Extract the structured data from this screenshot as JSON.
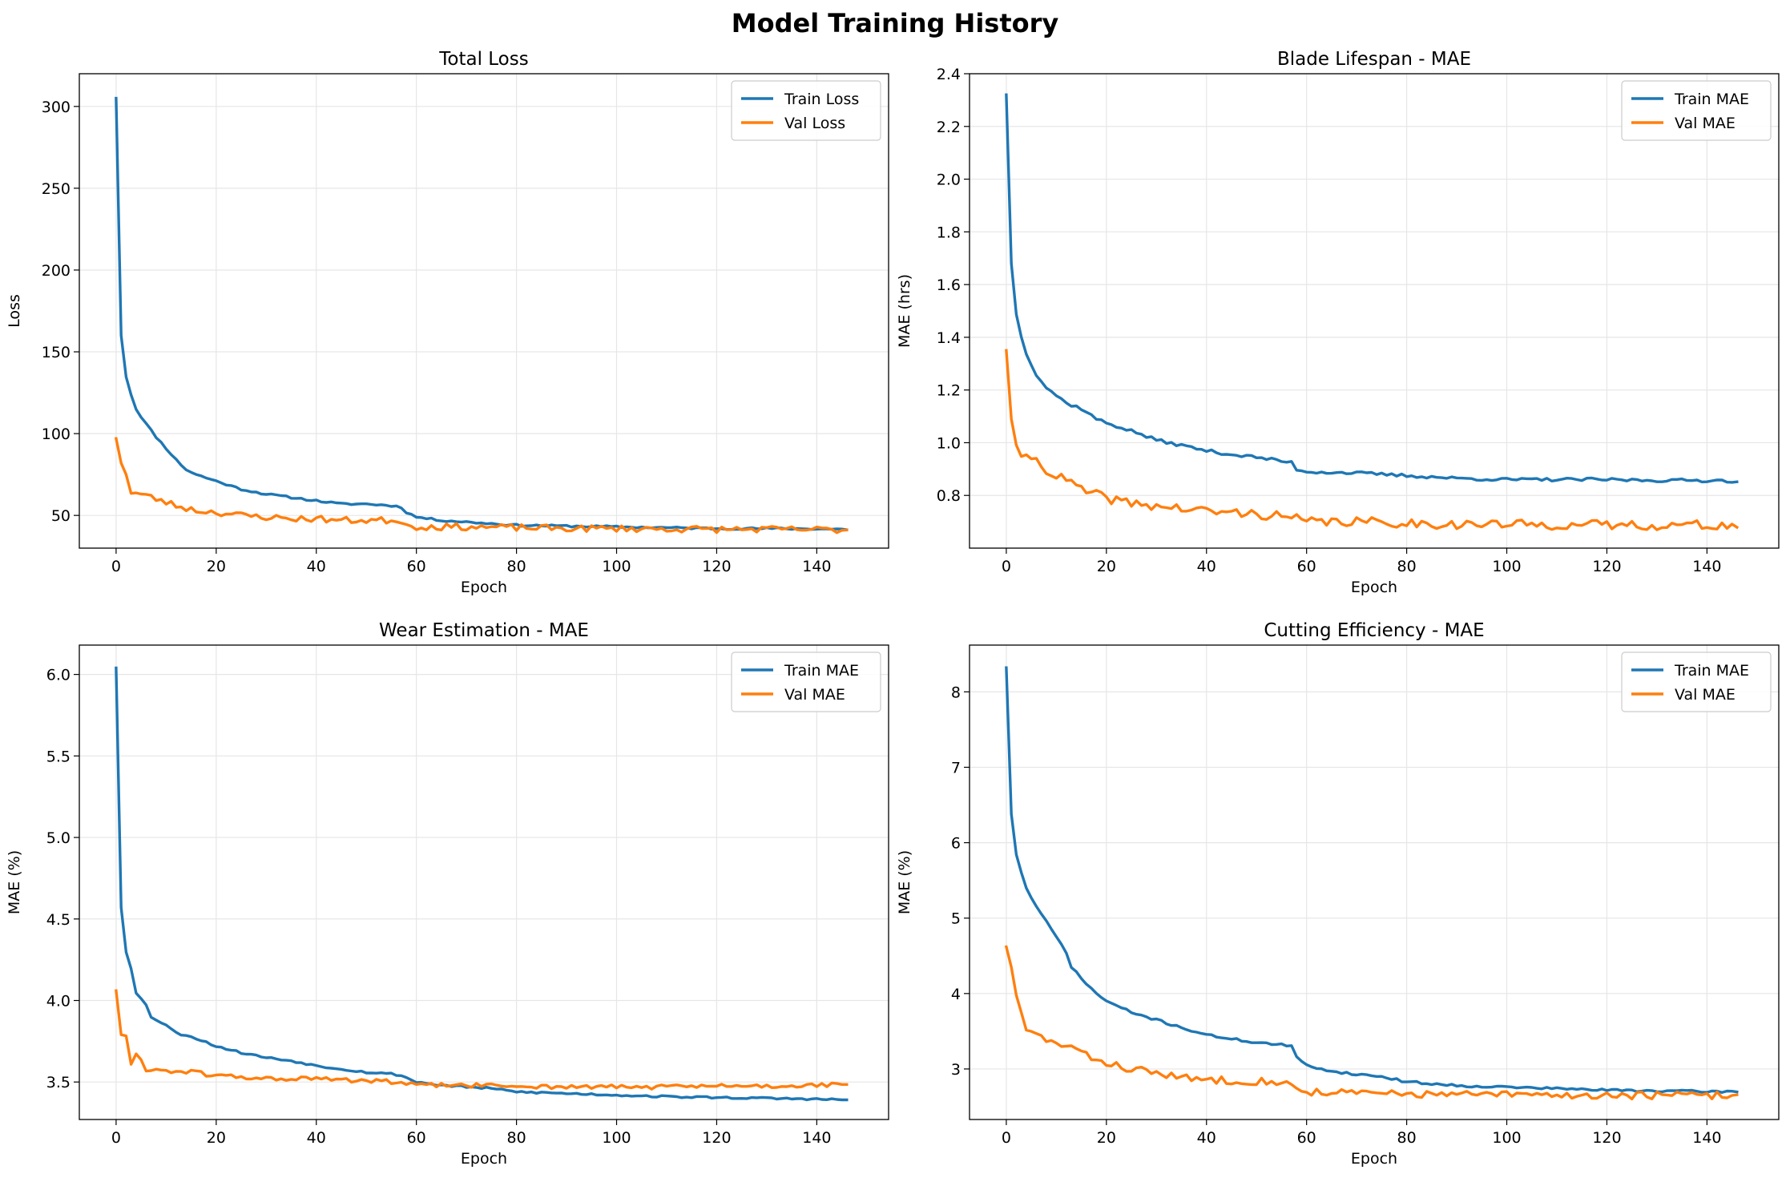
{
  "figure": {
    "title": "Model Training History"
  },
  "colors": {
    "train": "#1f77b4",
    "val": "#ff7f0e",
    "grid": "#e6e6e6"
  },
  "chart_data": [
    {
      "type": "line",
      "title": "Total Loss",
      "xlabel": "Epoch",
      "ylabel": "Loss",
      "xlim": [
        -7.35,
        154.35
      ],
      "ylim": [
        30,
        320
      ],
      "xticks": [
        0,
        20,
        40,
        60,
        80,
        100,
        120,
        140
      ],
      "yticks": [
        50,
        100,
        150,
        200,
        250,
        300
      ],
      "ytick_decimals": 0,
      "grid": true,
      "legend": "top-right",
      "series": [
        {
          "name": "Train Loss",
          "keypoints": [
            [
              0,
              305
            ],
            [
              1,
              160
            ],
            [
              2,
              135
            ],
            [
              3,
              124
            ],
            [
              4,
              115
            ],
            [
              6,
              106
            ],
            [
              8,
              98
            ],
            [
              10,
              91
            ],
            [
              12,
              84
            ],
            [
              14,
              78
            ],
            [
              16,
              75
            ],
            [
              20,
              71
            ],
            [
              25,
              66
            ],
            [
              30,
              63
            ],
            [
              35,
              61
            ],
            [
              40,
              59
            ],
            [
              45,
              57
            ],
            [
              50,
              57
            ],
            [
              55,
              56
            ],
            [
              57,
              55
            ],
            [
              58,
              52
            ],
            [
              60,
              49
            ],
            [
              65,
              47
            ],
            [
              70,
              46
            ],
            [
              75,
              45
            ],
            [
              80,
              44
            ],
            [
              90,
              43.5
            ],
            [
              100,
              43
            ],
            [
              110,
              42.5
            ],
            [
              120,
              42
            ],
            [
              130,
              42
            ],
            [
              140,
              41.8
            ],
            [
              146,
              41.5
            ]
          ],
          "noise": 0.6,
          "seed": 11
        },
        {
          "name": "Val Loss",
          "keypoints": [
            [
              0,
              97
            ],
            [
              1,
              82
            ],
            [
              2,
              76
            ],
            [
              3,
              64
            ],
            [
              5,
              63
            ],
            [
              8,
              60
            ],
            [
              10,
              58
            ],
            [
              12,
              56
            ],
            [
              16,
              53
            ],
            [
              20,
              52
            ],
            [
              25,
              50
            ],
            [
              30,
              49
            ],
            [
              35,
              48
            ],
            [
              40,
              48
            ],
            [
              45,
              47
            ],
            [
              50,
              47
            ],
            [
              55,
              47
            ],
            [
              57,
              47
            ],
            [
              58,
              44
            ],
            [
              60,
              43
            ],
            [
              70,
              43
            ],
            [
              80,
              42.5
            ],
            [
              90,
              42
            ],
            [
              100,
              42
            ],
            [
              110,
              41.7
            ],
            [
              120,
              41.5
            ],
            [
              130,
              41.5
            ],
            [
              140,
              41.3
            ],
            [
              146,
              41.2
            ]
          ],
          "noise": 2.0,
          "seed": 23
        }
      ]
    },
    {
      "type": "line",
      "title": "Blade Lifespan - MAE",
      "xlabel": "Epoch",
      "ylabel": "MAE (hrs)",
      "xlim": [
        -7.35,
        154.35
      ],
      "ylim": [
        0.6,
        2.4
      ],
      "xticks": [
        0,
        20,
        40,
        60,
        80,
        100,
        120,
        140
      ],
      "yticks": [
        0.8,
        1.0,
        1.2,
        1.4,
        1.6,
        1.8,
        2.0,
        2.2,
        2.4
      ],
      "ytick_decimals": 1,
      "grid": true,
      "legend": "top-right",
      "series": [
        {
          "name": "Train MAE",
          "keypoints": [
            [
              0,
              2.32
            ],
            [
              1,
              1.68
            ],
            [
              2,
              1.49
            ],
            [
              3,
              1.4
            ],
            [
              4,
              1.34
            ],
            [
              6,
              1.26
            ],
            [
              8,
              1.21
            ],
            [
              10,
              1.18
            ],
            [
              12,
              1.15
            ],
            [
              15,
              1.13
            ],
            [
              18,
              1.09
            ],
            [
              20,
              1.075
            ],
            [
              25,
              1.045
            ],
            [
              30,
              1.01
            ],
            [
              35,
              0.99
            ],
            [
              40,
              0.97
            ],
            [
              45,
              0.955
            ],
            [
              50,
              0.945
            ],
            [
              55,
              0.93
            ],
            [
              57,
              0.925
            ],
            [
              58,
              0.9
            ],
            [
              60,
              0.89
            ],
            [
              70,
              0.885
            ],
            [
              80,
              0.875
            ],
            [
              90,
              0.865
            ],
            [
              100,
              0.86
            ],
            [
              110,
              0.86
            ],
            [
              120,
              0.86
            ],
            [
              130,
              0.857
            ],
            [
              140,
              0.857
            ],
            [
              146,
              0.855
            ]
          ],
          "noise": 0.006,
          "seed": 37
        },
        {
          "name": "Val MAE",
          "keypoints": [
            [
              0,
              1.35
            ],
            [
              1,
              1.09
            ],
            [
              2,
              1.0
            ],
            [
              3,
              0.93
            ],
            [
              5,
              0.95
            ],
            [
              8,
              0.9
            ],
            [
              10,
              0.87
            ],
            [
              12,
              0.86
            ],
            [
              15,
              0.82
            ],
            [
              20,
              0.79
            ],
            [
              25,
              0.77
            ],
            [
              30,
              0.76
            ],
            [
              35,
              0.75
            ],
            [
              40,
              0.74
            ],
            [
              45,
              0.735
            ],
            [
              50,
              0.73
            ],
            [
              55,
              0.72
            ],
            [
              57,
              0.715
            ],
            [
              60,
              0.7
            ],
            [
              70,
              0.7
            ],
            [
              80,
              0.695
            ],
            [
              90,
              0.69
            ],
            [
              100,
              0.69
            ],
            [
              110,
              0.688
            ],
            [
              120,
              0.688
            ],
            [
              130,
              0.687
            ],
            [
              140,
              0.687
            ],
            [
              146,
              0.686
            ]
          ],
          "noise": 0.018,
          "seed": 41
        }
      ]
    },
    {
      "type": "line",
      "title": "Wear Estimation - MAE",
      "xlabel": "Epoch",
      "ylabel": "MAE (%)",
      "xlim": [
        -7.35,
        154.35
      ],
      "ylim": [
        3.27,
        6.18
      ],
      "xticks": [
        0,
        20,
        40,
        60,
        80,
        100,
        120,
        140
      ],
      "yticks": [
        3.5,
        4.0,
        4.5,
        5.0,
        5.5,
        6.0
      ],
      "ytick_decimals": 1,
      "grid": true,
      "legend": "top-right",
      "series": [
        {
          "name": "Train MAE",
          "keypoints": [
            [
              0,
              6.04
            ],
            [
              1,
              4.57
            ],
            [
              2,
              4.3
            ],
            [
              3,
              4.2
            ],
            [
              4,
              4.05
            ],
            [
              6,
              3.97
            ],
            [
              7,
              3.9
            ],
            [
              10,
              3.85
            ],
            [
              12,
              3.8
            ],
            [
              15,
              3.78
            ],
            [
              20,
              3.72
            ],
            [
              25,
              3.68
            ],
            [
              30,
              3.65
            ],
            [
              35,
              3.63
            ],
            [
              40,
              3.6
            ],
            [
              45,
              3.58
            ],
            [
              50,
              3.56
            ],
            [
              55,
              3.55
            ],
            [
              57,
              3.54
            ],
            [
              60,
              3.5
            ],
            [
              65,
              3.48
            ],
            [
              70,
              3.47
            ],
            [
              75,
              3.46
            ],
            [
              80,
              3.44
            ],
            [
              90,
              3.43
            ],
            [
              100,
              3.42
            ],
            [
              110,
              3.41
            ],
            [
              120,
              3.405
            ],
            [
              130,
              3.4
            ],
            [
              140,
              3.395
            ],
            [
              146,
              3.39
            ]
          ],
          "noise": 0.006,
          "seed": 53
        },
        {
          "name": "Val MAE",
          "keypoints": [
            [
              0,
              4.06
            ],
            [
              1,
              3.79
            ],
            [
              2,
              3.79
            ],
            [
              3,
              3.6
            ],
            [
              4,
              3.67
            ],
            [
              6,
              3.58
            ],
            [
              10,
              3.57
            ],
            [
              15,
              3.56
            ],
            [
              20,
              3.54
            ],
            [
              25,
              3.53
            ],
            [
              30,
              3.52
            ],
            [
              35,
              3.52
            ],
            [
              40,
              3.52
            ],
            [
              45,
              3.51
            ],
            [
              50,
              3.51
            ],
            [
              55,
              3.5
            ],
            [
              58,
              3.49
            ],
            [
              60,
              3.48
            ],
            [
              70,
              3.48
            ],
            [
              80,
              3.475
            ],
            [
              90,
              3.47
            ],
            [
              100,
              3.47
            ],
            [
              110,
              3.47
            ],
            [
              120,
              3.475
            ],
            [
              130,
              3.475
            ],
            [
              140,
              3.48
            ],
            [
              146,
              3.48
            ]
          ],
          "noise": 0.014,
          "seed": 61
        }
      ]
    },
    {
      "type": "line",
      "title": "Cutting Efficiency - MAE",
      "xlabel": "Epoch",
      "ylabel": "MAE (%)",
      "xlim": [
        -7.35,
        154.35
      ],
      "ylim": [
        2.33,
        8.62
      ],
      "xticks": [
        0,
        20,
        40,
        60,
        80,
        100,
        120,
        140
      ],
      "yticks": [
        3,
        4,
        5,
        6,
        7,
        8
      ],
      "ytick_decimals": 0,
      "grid": true,
      "legend": "top-right",
      "series": [
        {
          "name": "Train MAE",
          "keypoints": [
            [
              0,
              8.32
            ],
            [
              1,
              6.38
            ],
            [
              2,
              5.85
            ],
            [
              3,
              5.6
            ],
            [
              4,
              5.4
            ],
            [
              6,
              5.15
            ],
            [
              8,
              4.95
            ],
            [
              10,
              4.75
            ],
            [
              12,
              4.55
            ],
            [
              13,
              4.35
            ],
            [
              15,
              4.2
            ],
            [
              18,
              4.0
            ],
            [
              20,
              3.9
            ],
            [
              25,
              3.75
            ],
            [
              30,
              3.65
            ],
            [
              35,
              3.55
            ],
            [
              40,
              3.45
            ],
            [
              45,
              3.4
            ],
            [
              50,
              3.35
            ],
            [
              55,
              3.32
            ],
            [
              57,
              3.3
            ],
            [
              58,
              3.15
            ],
            [
              60,
              3.05
            ],
            [
              65,
              2.97
            ],
            [
              70,
              2.93
            ],
            [
              75,
              2.9
            ],
            [
              80,
              2.83
            ],
            [
              90,
              2.78
            ],
            [
              100,
              2.76
            ],
            [
              110,
              2.74
            ],
            [
              120,
              2.72
            ],
            [
              130,
              2.71
            ],
            [
              140,
              2.7
            ],
            [
              146,
              2.7
            ]
          ],
          "noise": 0.015,
          "seed": 71
        },
        {
          "name": "Val MAE",
          "keypoints": [
            [
              0,
              4.62
            ],
            [
              1,
              4.35
            ],
            [
              2,
              4.0
            ],
            [
              3,
              3.72
            ],
            [
              4,
              3.5
            ],
            [
              6,
              3.45
            ],
            [
              8,
              3.4
            ],
            [
              10,
              3.32
            ],
            [
              13,
              3.3
            ],
            [
              15,
              3.2
            ],
            [
              20,
              3.08
            ],
            [
              25,
              3.0
            ],
            [
              30,
              2.95
            ],
            [
              35,
              2.88
            ],
            [
              40,
              2.86
            ],
            [
              45,
              2.85
            ],
            [
              50,
              2.84
            ],
            [
              55,
              2.83
            ],
            [
              58,
              2.74
            ],
            [
              60,
              2.7
            ],
            [
              70,
              2.68
            ],
            [
              80,
              2.67
            ],
            [
              90,
              2.66
            ],
            [
              100,
              2.66
            ],
            [
              110,
              2.65
            ],
            [
              120,
              2.65
            ],
            [
              130,
              2.65
            ],
            [
              140,
              2.65
            ],
            [
              146,
              2.65
            ]
          ],
          "noise": 0.05,
          "seed": 83
        }
      ]
    }
  ]
}
